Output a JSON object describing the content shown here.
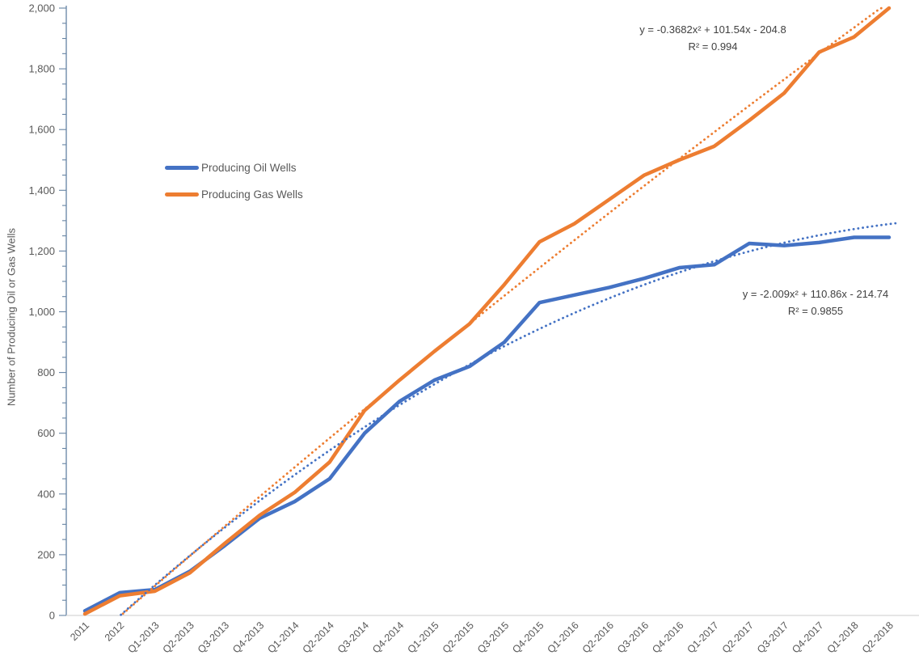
{
  "chart_data": {
    "type": "line",
    "title": "",
    "xlabel": "",
    "ylabel": "Number of Producing Oil or Gas Wells",
    "ylim": [
      0,
      2000
    ],
    "ytick_step": 200,
    "yminor_step": 50,
    "grid": false,
    "legend_position": "inside-top-left",
    "categories": [
      "2011",
      "2012",
      "Q1-2013",
      "Q2-2013",
      "Q3-2013",
      "Q4-2013",
      "Q1-2014",
      "Q2-2014",
      "Q3-2014",
      "Q4-2014",
      "Q1-2015",
      "Q2-2015",
      "Q3-2015",
      "Q4-2015",
      "Q1-2016",
      "Q2-2016",
      "Q3-2016",
      "Q4-2016",
      "Q1-2017",
      "Q2-2017",
      "Q3-2017",
      "Q4-2017",
      "Q1-2018",
      "Q2-2018"
    ],
    "series": [
      {
        "name": "Producing Oil Wells",
        "color": "#4472C4",
        "values": [
          15,
          75,
          85,
          145,
          230,
          320,
          375,
          450,
          600,
          705,
          775,
          820,
          900,
          1030,
          1055,
          1080,
          1110,
          1145,
          1155,
          1225,
          1218,
          1228,
          1245,
          1245
        ]
      },
      {
        "name": "Producing Gas Wells",
        "color": "#ED7D31",
        "values": [
          5,
          65,
          80,
          140,
          237,
          330,
          405,
          505,
          675,
          775,
          870,
          960,
          1090,
          1230,
          1290,
          1370,
          1450,
          1500,
          1545,
          1630,
          1720,
          1855,
          1905,
          2000
        ]
      }
    ],
    "trendlines": [
      {
        "series": "Producing Gas Wells",
        "color": "#ED7D31",
        "style": "dotted",
        "equation": "y = -0.3682x² + 101.54x  - 204.8",
        "r2": "R² = 0.994",
        "a": -0.3682,
        "b": 101.54,
        "c": -204.8,
        "t_start": 2.03,
        "t_end": 24.45
      },
      {
        "series": "Producing Oil Wells",
        "color": "#4472C4",
        "style": "dotted",
        "equation": "y = -2.009x² + 110.86x  - 214.74",
        "r2": "R² = 0.9855",
        "a": -2.009,
        "b": 110.86,
        "c": -214.74,
        "t_start": 1.97,
        "t_end": 24.25
      }
    ],
    "axis_colors": {
      "y_axis": "#6583A3",
      "x_axis": "#D6D6D6",
      "tick_label": "#595959"
    }
  }
}
